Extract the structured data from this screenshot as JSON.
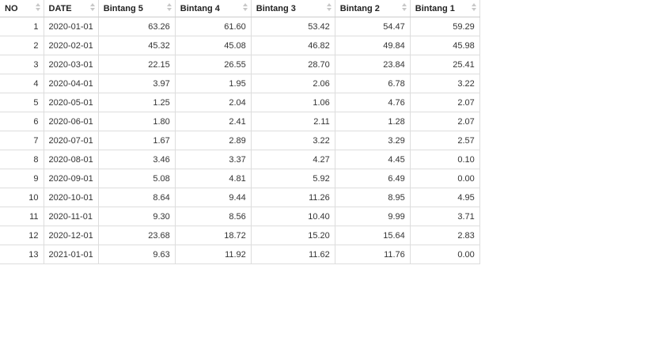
{
  "table": {
    "columns": [
      "NO",
      "DATE",
      "Bintang 5",
      "Bintang 4",
      "Bintang 3",
      "Bintang 2",
      "Bintang 1"
    ],
    "rows": [
      [
        "1",
        "2020-01-01",
        "63.26",
        "61.60",
        "53.42",
        "54.47",
        "59.29"
      ],
      [
        "2",
        "2020-02-01",
        "45.32",
        "45.08",
        "46.82",
        "49.84",
        "45.98"
      ],
      [
        "3",
        "2020-03-01",
        "22.15",
        "26.55",
        "28.70",
        "23.84",
        "25.41"
      ],
      [
        "4",
        "2020-04-01",
        "3.97",
        "1.95",
        "2.06",
        "6.78",
        "3.22"
      ],
      [
        "5",
        "2020-05-01",
        "1.25",
        "2.04",
        "1.06",
        "4.76",
        "2.07"
      ],
      [
        "6",
        "2020-06-01",
        "1.80",
        "2.41",
        "2.11",
        "1.28",
        "2.07"
      ],
      [
        "7",
        "2020-07-01",
        "1.67",
        "2.89",
        "3.22",
        "3.29",
        "2.57"
      ],
      [
        "8",
        "2020-08-01",
        "3.46",
        "3.37",
        "4.27",
        "4.45",
        "0.10"
      ],
      [
        "9",
        "2020-09-01",
        "5.08",
        "4.81",
        "5.92",
        "6.49",
        "0.00"
      ],
      [
        "10",
        "2020-10-01",
        "8.64",
        "9.44",
        "11.26",
        "8.95",
        "4.95"
      ],
      [
        "11",
        "2020-11-01",
        "9.30",
        "8.56",
        "10.40",
        "9.99",
        "3.71"
      ],
      [
        "12",
        "2020-12-01",
        "23.68",
        "18.72",
        "15.20",
        "15.64",
        "2.83"
      ],
      [
        "13",
        "2021-01-01",
        "9.63",
        "11.92",
        "11.62",
        "11.76",
        "0.00"
      ]
    ]
  }
}
